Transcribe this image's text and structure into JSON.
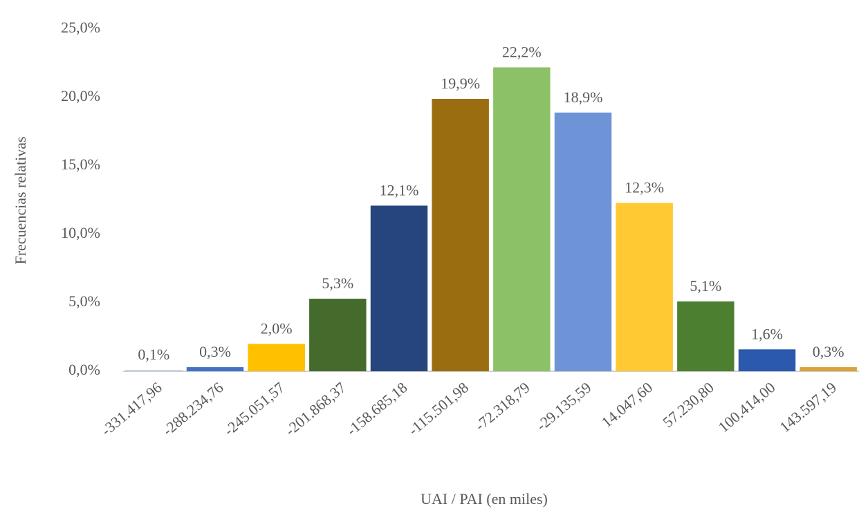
{
  "chart_data": {
    "type": "bar",
    "x_label": "UAI / PAI (en miles)",
    "y_label": "Frecuencias relativas",
    "categories": [
      "-331.417,96",
      "-288.234,76",
      "-245.051,57",
      "-201.868,37",
      "-158.685,18",
      "-115.501,98",
      "-72.318,79",
      "-29.135,59",
      "14.047,60",
      "57.230,80",
      "100.414,00",
      "143.597,19"
    ],
    "values": [
      0.1,
      0.3,
      2.0,
      5.3,
      12.1,
      19.9,
      22.2,
      18.9,
      12.3,
      5.1,
      1.6,
      0.3
    ],
    "value_labels": [
      "0,1%",
      "0,3%",
      "2,0%",
      "5,3%",
      "12,1%",
      "19,9%",
      "22,2%",
      "18,9%",
      "12,3%",
      "5,1%",
      "1,6%",
      "0,3%"
    ],
    "colors": [
      "#c9d3e0",
      "#4472c4",
      "#ffc000",
      "#446b2c",
      "#26457e",
      "#9a6e10",
      "#8cc168",
      "#6e93d6",
      "#ffc933",
      "#4c8030",
      "#2a59ad",
      "#d9a23a"
    ],
    "ylim": [
      0,
      25
    ],
    "yticks": [
      {
        "value": 0,
        "label": "0,0%"
      },
      {
        "value": 5,
        "label": "5,0%"
      },
      {
        "value": 10,
        "label": "10,0%"
      },
      {
        "value": 15,
        "label": "15,0%"
      },
      {
        "value": 20,
        "label": "20,0%"
      },
      {
        "value": 25,
        "label": "25,0%"
      }
    ],
    "grid": false
  }
}
